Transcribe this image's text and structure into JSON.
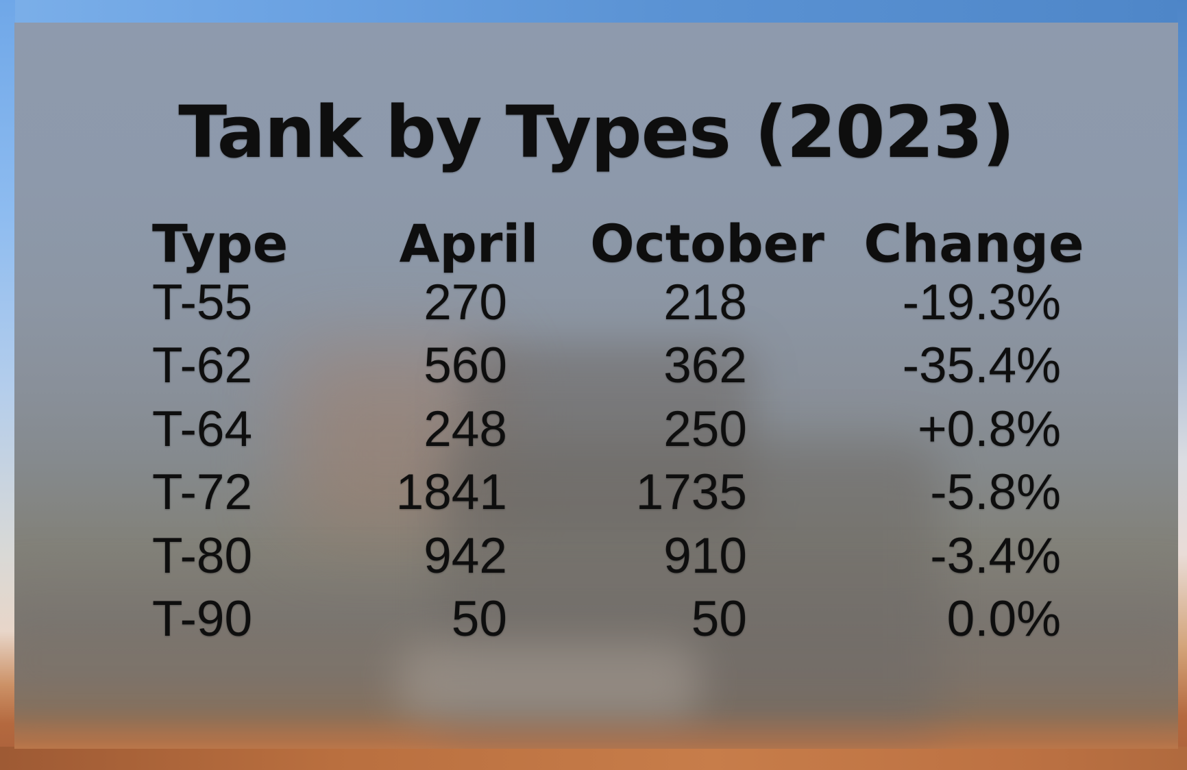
{
  "slide": {
    "title": "Tank by Types (2023)"
  },
  "table": {
    "headers": [
      "Type",
      "April",
      "October",
      "Change"
    ],
    "rows": [
      [
        "T-55",
        "270",
        "218",
        "-19.3%"
      ],
      [
        "T-62",
        "560",
        "362",
        "-35.4%"
      ],
      [
        "T-64",
        "248",
        "250",
        "+0.8%"
      ],
      [
        "T-72",
        "1841",
        "1735",
        "-5.8%"
      ],
      [
        "T-80",
        "942",
        "910",
        "-3.4%"
      ],
      [
        "T-90",
        "50",
        "50",
        "0.0%"
      ]
    ]
  },
  "chart_data": {
    "type": "table",
    "title": "Tank by Types (2023)",
    "columns": [
      "Type",
      "April",
      "October",
      "Change"
    ],
    "categories": [
      "T-55",
      "T-62",
      "T-64",
      "T-72",
      "T-80",
      "T-90"
    ],
    "series": [
      {
        "name": "April",
        "values": [
          270,
          560,
          248,
          1841,
          942,
          50
        ]
      },
      {
        "name": "October",
        "values": [
          218,
          362,
          250,
          1735,
          910,
          50
        ]
      },
      {
        "name": "Change",
        "values": [
          "-19.3%",
          "-35.4%",
          "+0.8%",
          "-5.8%",
          "-3.4%",
          "0.0%"
        ]
      }
    ]
  },
  "colors": {
    "text": "#0e0e0e",
    "sky_left": "#7bafe9",
    "sky_right": "#4e86c8",
    "terrain_orange": "#b4693f",
    "panel_top": "#8e9aad",
    "panel_bottom": "#b57b4e"
  }
}
